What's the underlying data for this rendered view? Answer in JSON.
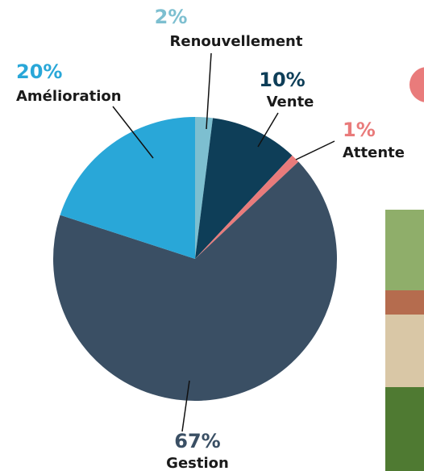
{
  "chart_data": {
    "type": "pie",
    "categories": [
      "Renouvellement",
      "Vente",
      "Attente",
      "Gestion",
      "Amélioration"
    ],
    "values": [
      2,
      10,
      1,
      67,
      20
    ],
    "value_labels": [
      "2%",
      "10%",
      "1%",
      "67%",
      "20%"
    ],
    "colors": [
      "#7dbfd0",
      "#0e3e58",
      "#e97b7b",
      "#3a4f64",
      "#29a7d8"
    ]
  }
}
